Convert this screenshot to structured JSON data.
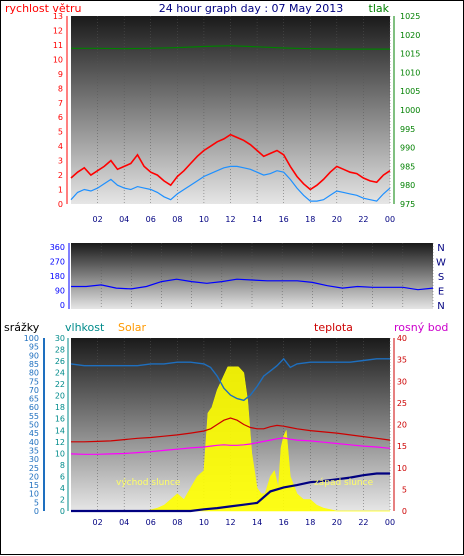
{
  "colors": {
    "wind": "#ff0000",
    "gust": "#ff0000",
    "wind_avg": "#1e90ff",
    "pressure": "#008000",
    "direction": "#0000ff",
    "rain": "#000080",
    "rain_axis": "#1e6fbf",
    "humidity": "#1e6fbf",
    "humidity_axis": "#008b8b",
    "solar": "#ffff00",
    "solar_label": "#ff9900",
    "temperature": "#cc0000",
    "dewpoint": "#ff00ff",
    "sun_label": "#ffff66"
  },
  "chart_data": [
    {
      "type": "line",
      "title": "24 hour graph day : 07 May 2013",
      "y_left_label": "rychlost větru",
      "y_right_label": "tlak",
      "y_left_ticks": [
        "0",
        "1",
        "2",
        "3",
        "4",
        "5",
        "6",
        "7",
        "8",
        "9",
        "10",
        "11",
        "12",
        "13"
      ],
      "y_right_ticks": [
        "975",
        "980",
        "985",
        "990",
        "995",
        "1000",
        "1005",
        "1010",
        "1015",
        "1020",
        "1025"
      ],
      "x_ticks": [
        "02",
        "04",
        "06",
        "08",
        "10",
        "12",
        "14",
        "16",
        "18",
        "20",
        "22",
        "00"
      ],
      "ylim_left": [
        0,
        13
      ],
      "ylim_right": [
        975,
        1025
      ],
      "series": [
        {
          "key": "gust",
          "x": [
            0,
            0.5,
            1,
            1.5,
            2,
            2.5,
            3,
            3.5,
            4,
            4.5,
            5,
            5.5,
            6,
            6.5,
            7,
            7.5,
            8,
            8.5,
            9,
            9.5,
            10,
            10.5,
            11,
            11.5,
            12,
            12.5,
            13,
            13.5,
            14,
            14.5,
            15,
            15.5,
            16,
            16.5,
            17,
            17.5,
            18,
            18.5,
            19,
            19.5,
            20,
            20.5,
            21,
            21.5,
            22,
            22.5,
            23,
            23.5,
            24
          ],
          "values": [
            1.8,
            2.2,
            2.5,
            2.0,
            2.3,
            2.6,
            3.0,
            2.4,
            2.6,
            2.8,
            3.4,
            2.6,
            2.2,
            2.0,
            1.6,
            1.3,
            1.9,
            2.3,
            2.8,
            3.3,
            3.7,
            4.0,
            4.3,
            4.5,
            4.8,
            4.6,
            4.4,
            4.1,
            3.7,
            3.3,
            3.5,
            3.7,
            3.4,
            2.6,
            1.9,
            1.4,
            1.0,
            1.3,
            1.7,
            2.2,
            2.6,
            2.4,
            2.2,
            2.1,
            1.8,
            1.6,
            1.5,
            2.0,
            2.3
          ]
        },
        {
          "key": "wind_avg",
          "x": [
            0,
            0.5,
            1,
            1.5,
            2,
            2.5,
            3,
            3.5,
            4,
            4.5,
            5,
            5.5,
            6,
            6.5,
            7,
            7.5,
            8,
            8.5,
            9,
            9.5,
            10,
            10.5,
            11,
            11.5,
            12,
            12.5,
            13,
            13.5,
            14,
            14.5,
            15,
            15.5,
            16,
            16.5,
            17,
            17.5,
            18,
            18.5,
            19,
            19.5,
            20,
            20.5,
            21,
            21.5,
            22,
            22.5,
            23,
            23.5,
            24
          ],
          "values": [
            0.3,
            0.8,
            1.0,
            0.9,
            1.1,
            1.4,
            1.7,
            1.3,
            1.1,
            1.0,
            1.2,
            1.1,
            1.0,
            0.8,
            0.5,
            0.3,
            0.7,
            1.0,
            1.3,
            1.6,
            1.9,
            2.1,
            2.3,
            2.5,
            2.6,
            2.6,
            2.5,
            2.4,
            2.2,
            2.0,
            2.1,
            2.3,
            2.2,
            1.7,
            1.1,
            0.6,
            0.2,
            0.2,
            0.3,
            0.6,
            0.9,
            0.8,
            0.7,
            0.6,
            0.4,
            0.3,
            0.2,
            0.7,
            1.1
          ]
        },
        {
          "key": "pressure",
          "x": [
            0,
            2,
            4,
            6,
            8,
            10,
            12,
            14,
            16,
            18,
            20,
            22,
            24
          ],
          "values": [
            1016.4,
            1016.4,
            1016.3,
            1016.4,
            1016.6,
            1016.9,
            1017.1,
            1016.8,
            1016.5,
            1016.3,
            1016.2,
            1016.2,
            1016.2
          ]
        }
      ]
    },
    {
      "type": "line",
      "y_ticks": [
        "0",
        "90",
        "180",
        "270",
        "360"
      ],
      "ylim": [
        0,
        360
      ],
      "compass_labels": [
        "N",
        "W",
        "S",
        "E",
        "N"
      ],
      "series": [
        {
          "key": "direction",
          "x": [
            0,
            1,
            2,
            3,
            4,
            5,
            6,
            7,
            8,
            9,
            10,
            11,
            12,
            13,
            14,
            15,
            16,
            17,
            18,
            19,
            20,
            21,
            22,
            23,
            24
          ],
          "values": [
            115,
            115,
            125,
            105,
            100,
            115,
            145,
            160,
            145,
            135,
            145,
            160,
            155,
            150,
            150,
            150,
            140,
            120,
            105,
            115,
            110,
            110,
            110,
            95,
            105
          ]
        }
      ]
    },
    {
      "type": "area",
      "y_rain_label": "srážky",
      "y_humidity_label": "vlhkost",
      "y_solar_label": "Solar",
      "y_temp_label": "teplota",
      "y_dew_label": "rosný bod",
      "rain_ticks": [
        "0",
        "5",
        "10",
        "15",
        "20",
        "25",
        "30",
        "35",
        "40",
        "45",
        "50",
        "55",
        "60",
        "65",
        "70",
        "75",
        "80",
        "85",
        "90",
        "95",
        "100"
      ],
      "humidity_ticks": [
        "0",
        "2",
        "4",
        "6",
        "8",
        "10",
        "12",
        "14",
        "16",
        "18",
        "20",
        "22",
        "24",
        "26",
        "28",
        "30"
      ],
      "temp_ticks": [
        "0",
        "5",
        "10",
        "15",
        "20",
        "25",
        "30",
        "35",
        "40"
      ],
      "x_ticks": [
        "02",
        "04",
        "06",
        "08",
        "10",
        "12",
        "14",
        "16",
        "18",
        "20",
        "22",
        "00"
      ],
      "annotations": {
        "sunrise": "východ slunce",
        "sunset": "západ slunce"
      },
      "series": [
        {
          "key": "humidity",
          "x": [
            0,
            1,
            2,
            3,
            4,
            5,
            6,
            7,
            8,
            9,
            10,
            10.5,
            11,
            11.5,
            12,
            12.5,
            13,
            13.5,
            14,
            14.5,
            15,
            15.5,
            16,
            16.5,
            17,
            18,
            19,
            20,
            21,
            22,
            23,
            24
          ],
          "values": [
            85,
            84,
            84,
            84,
            84,
            84,
            85,
            85,
            86,
            86,
            85,
            83,
            78,
            71,
            67,
            65,
            64,
            67,
            72,
            78,
            81,
            84,
            88,
            83,
            85,
            86,
            86,
            86,
            86,
            87,
            88,
            88
          ]
        },
        {
          "key": "temperature",
          "x": [
            0,
            1,
            2,
            3,
            4,
            5,
            6,
            7,
            8,
            9,
            10,
            10.5,
            11,
            11.5,
            12,
            12.5,
            13,
            13.5,
            14,
            14.5,
            15,
            15.5,
            16,
            16.5,
            17,
            18,
            19,
            20,
            21,
            22,
            23,
            24
          ],
          "values": [
            16.0,
            16.0,
            16.1,
            16.2,
            16.5,
            16.8,
            17.0,
            17.3,
            17.6,
            18.0,
            18.5,
            19.0,
            20.0,
            21.0,
            21.5,
            21.0,
            20.0,
            19.3,
            19.0,
            19.0,
            19.5,
            19.8,
            19.6,
            19.3,
            19.0,
            18.6,
            18.3,
            18.0,
            17.6,
            17.2,
            16.8,
            16.4
          ]
        },
        {
          "key": "dewpoint",
          "x": [
            0,
            1,
            2,
            3,
            4,
            5,
            6,
            7,
            8,
            9,
            10,
            10.5,
            11,
            11.5,
            12,
            12.5,
            13,
            13.5,
            14,
            14.5,
            15,
            15.5,
            16,
            16.5,
            17,
            18,
            19,
            20,
            21,
            22,
            23,
            24
          ],
          "values": [
            13.2,
            13.1,
            13.1,
            13.2,
            13.3,
            13.5,
            13.7,
            14.0,
            14.3,
            14.6,
            14.8,
            15.0,
            15.2,
            15.3,
            15.2,
            15.2,
            15.3,
            15.5,
            15.8,
            16.1,
            16.4,
            16.7,
            16.9,
            16.6,
            16.4,
            16.2,
            15.9,
            15.6,
            15.3,
            15.0,
            14.8,
            14.5
          ]
        },
        {
          "key": "solar",
          "x": [
            0,
            5.5,
            6,
            6.5,
            7,
            7.5,
            8,
            8.5,
            9,
            9.5,
            10,
            10.3,
            10.6,
            11,
            11.4,
            11.8,
            12.2,
            12.6,
            13,
            13.3,
            13.6,
            14,
            14.3,
            14.6,
            15,
            15.3,
            15.6,
            15.8,
            16,
            16.2,
            16.5,
            17,
            17.5,
            18,
            18.5,
            19,
            20,
            24
          ],
          "values": [
            0,
            0,
            0.2,
            0.5,
            1,
            2,
            3,
            2,
            4,
            6,
            7,
            17,
            18,
            21,
            23,
            25,
            25,
            25,
            24,
            19,
            10,
            4,
            3,
            3,
            6,
            7,
            4,
            11,
            13,
            14,
            6,
            3,
            2,
            2,
            1,
            0.5,
            0,
            0
          ]
        },
        {
          "key": "rain",
          "x": [
            0,
            9,
            10,
            11,
            12,
            13,
            14,
            15,
            16,
            17,
            18,
            19,
            20,
            21,
            22,
            23,
            23.5,
            24
          ],
          "values": [
            0,
            0,
            0.3,
            0.5,
            0.8,
            1.1,
            1.4,
            3.4,
            4.1,
            4.5,
            5.0,
            5.2,
            5.5,
            5.8,
            6.2,
            6.5,
            6.5,
            6.5
          ]
        }
      ]
    }
  ]
}
